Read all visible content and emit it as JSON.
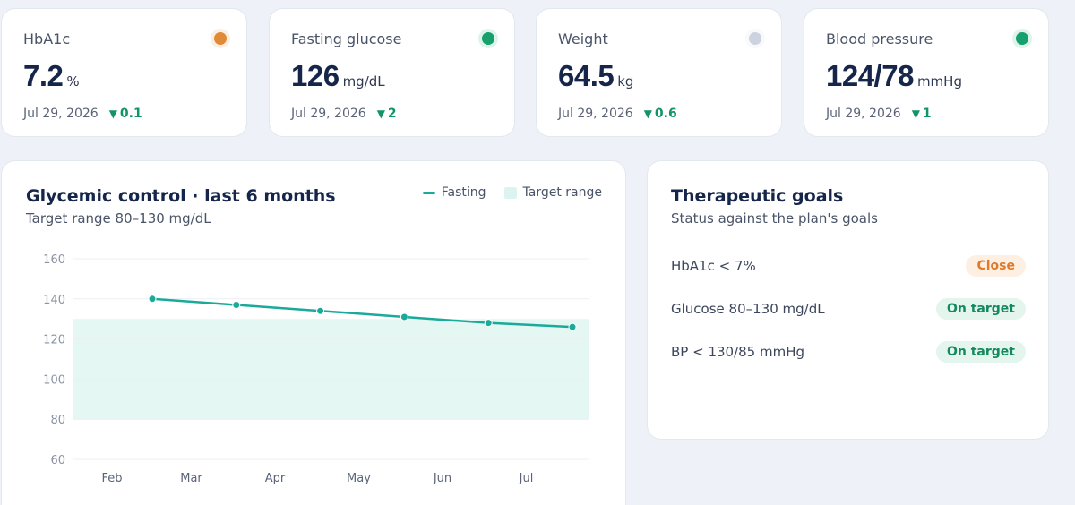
{
  "metrics": [
    {
      "label": "HbA1c",
      "value": "7.2",
      "unit": "%",
      "date": "Jul 29, 2026",
      "delta": "0.1",
      "dot_color": "#e08a36"
    },
    {
      "label": "Fasting glucose",
      "value": "126",
      "unit": "mg/dL",
      "date": "Jul 29, 2026",
      "delta": "2",
      "dot_color": "#15a06e"
    },
    {
      "label": "Weight",
      "value": "64.5",
      "unit": "kg",
      "date": "Jul 29, 2026",
      "delta": "0.6",
      "dot_color": "#cdd3de"
    },
    {
      "label": "Blood pressure",
      "value": "124/78",
      "unit": "mmHg",
      "date": "Jul 29, 2026",
      "delta": "1",
      "dot_color": "#15a06e"
    }
  ],
  "delta_icon": "triangle-down",
  "chart": {
    "title": "Glycemic control · last 6 months",
    "subtitle": "Target range 80–130 mg/dL",
    "legend": {
      "line": "Fasting",
      "area": "Target range"
    }
  },
  "chart_data": {
    "type": "line",
    "categories": [
      "Feb",
      "Mar",
      "Apr",
      "May",
      "Jun",
      "Jul"
    ],
    "series": [
      {
        "name": "Fasting",
        "values": [
          140,
          137,
          134,
          131,
          128,
          126
        ],
        "color": "#1aaa9a"
      }
    ],
    "target_range": [
      80,
      130
    ],
    "target_color": "#e4f7f3",
    "ylim": [
      60,
      160
    ],
    "yticks": [
      60,
      80,
      100,
      120,
      140,
      160
    ],
    "grid": true,
    "legend_position": "top-right"
  },
  "goals": {
    "title": "Therapeutic goals",
    "subtitle": "Status against the plan's goals",
    "items": [
      {
        "label": "HbA1c < 7%",
        "status": "Close",
        "text_color": "#e07a2c",
        "bg_color": "#fdf0e2"
      },
      {
        "label": "Glucose 80–130 mg/dL",
        "status": "On target",
        "text_color": "#138a5e",
        "bg_color": "#e3f5ec"
      },
      {
        "label": "BP < 130/85 mmHg",
        "status": "On target",
        "text_color": "#138a5e",
        "bg_color": "#e3f5ec"
      }
    ]
  }
}
